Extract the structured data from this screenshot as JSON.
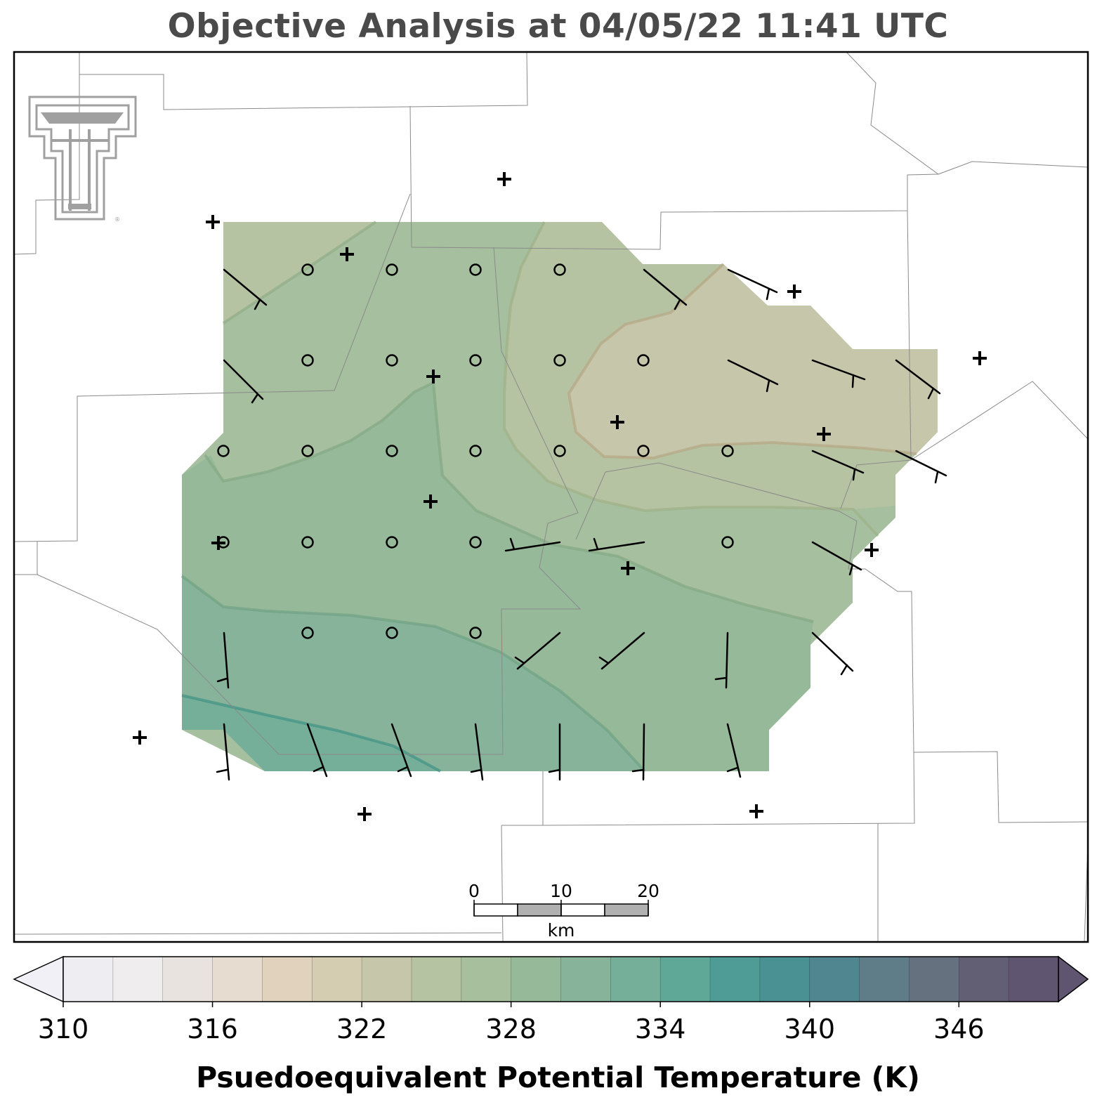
{
  "title": "Objective Analysis at 04/05/22 11:41 UTC",
  "colorbar": {
    "label": "Psuedoequivalent Potential Temperature (K)",
    "ticks": [
      "310",
      "316",
      "322",
      "328",
      "334",
      "340",
      "346"
    ],
    "min": 310,
    "max": 350,
    "step": 2,
    "colors": [
      "#eeeef2",
      "#efedee",
      "#e9e3df",
      "#e6dccf",
      "#e0d2bc",
      "#d4cdb1",
      "#c6c7aa",
      "#b6c3a2",
      "#a7bf9d",
      "#96b999",
      "#86b39a",
      "#75ae99",
      "#5fa897",
      "#4f9c96",
      "#4a9193",
      "#50868f",
      "#5f7d88",
      "#65717f",
      "#625f75",
      "#5f5570"
    ],
    "under_color": "#f1f0f6",
    "over_color": "#5f5570"
  },
  "scale_bar": {
    "ticks": [
      "0",
      "10",
      "20"
    ],
    "unit": "km"
  },
  "logo": {
    "name": "Double T logo",
    "color": "#a0a0a0"
  },
  "map": {
    "shaded_field": "Psuedoequivalent Potential Temperature (K)",
    "station_marker": "+",
    "calm_marker": "o",
    "wind_barbs": "wind direction and speed"
  }
}
